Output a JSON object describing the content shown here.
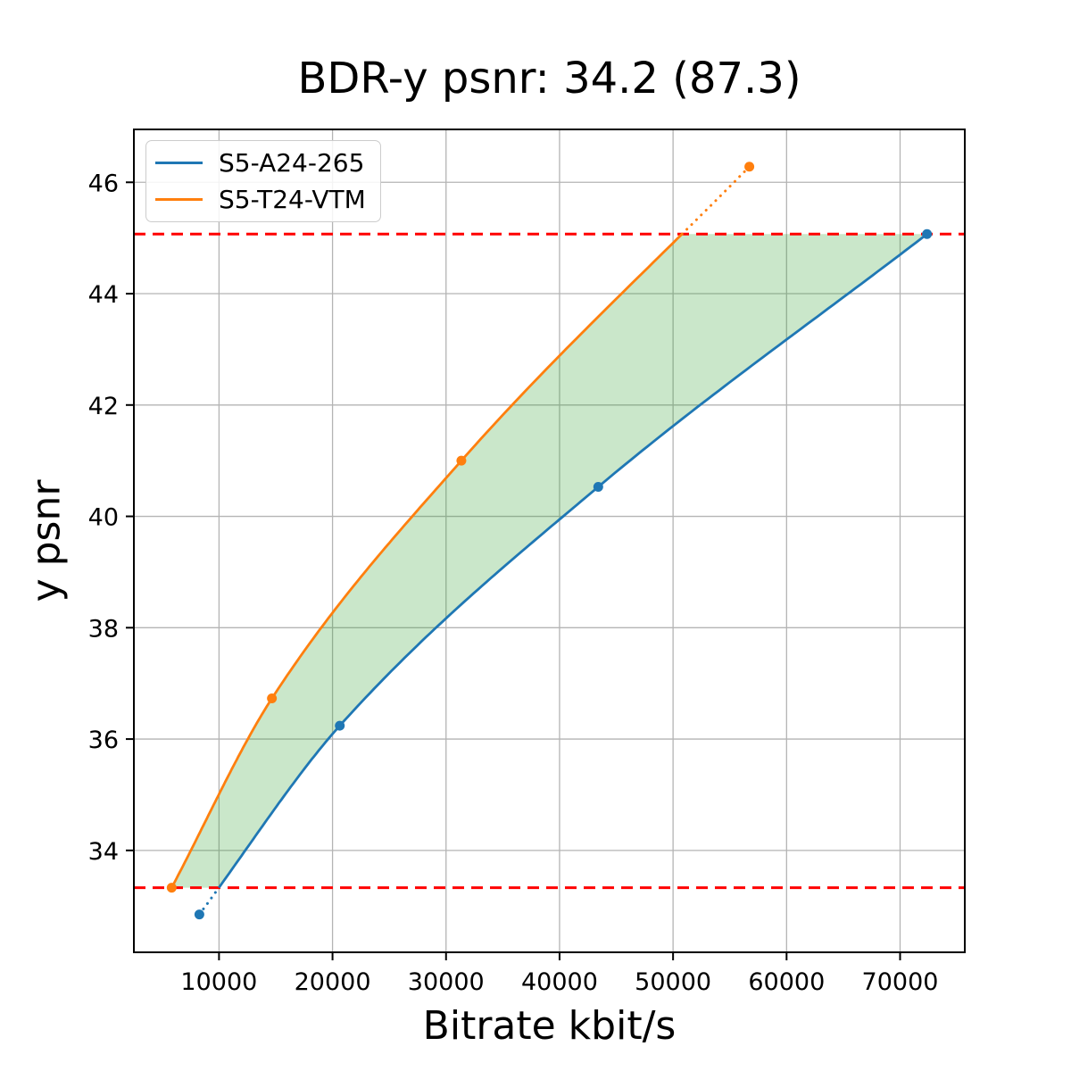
{
  "title": "BDR-y psnr: 34.2 (87.3)",
  "chart_data": {
    "type": "line",
    "title": "BDR-y psnr: 34.2 (87.3)",
    "xlabel": "Bitrate kbit/s",
    "ylabel": "y psnr",
    "xlim": [
      2500,
      75700
    ],
    "ylim": [
      32.17,
      46.95
    ],
    "x_ticks": [
      10000,
      20000,
      30000,
      40000,
      50000,
      60000,
      70000
    ],
    "y_ticks": [
      34,
      36,
      38,
      40,
      42,
      44,
      46
    ],
    "grid": true,
    "grid_color": "#b4b4b4",
    "legend_position": "upper left",
    "series": [
      {
        "name": "S5-A24-265",
        "color": "#1f77b4",
        "points": [
          [
            8270,
            32.85
          ],
          [
            20640,
            36.24
          ],
          [
            43410,
            40.53
          ],
          [
            72370,
            45.07
          ]
        ]
      },
      {
        "name": "S5-T24-VTM",
        "color": "#ff7f0e",
        "points": [
          [
            5830,
            33.33
          ],
          [
            14660,
            36.73
          ],
          [
            31350,
            41.0
          ],
          [
            56720,
            46.28
          ]
        ]
      }
    ],
    "bounds": {
      "lower": 33.33,
      "upper": 45.07,
      "color": "#ff0000",
      "style": "dashed",
      "note": "horizontal integration-bound lines; curve parts outside bounds drawn dotted"
    },
    "fill_between": {
      "color": "#2ca02c",
      "alpha": 0.25,
      "description": "area enclosed between the two rate-distortion curves, clipped to the bound lines"
    }
  }
}
